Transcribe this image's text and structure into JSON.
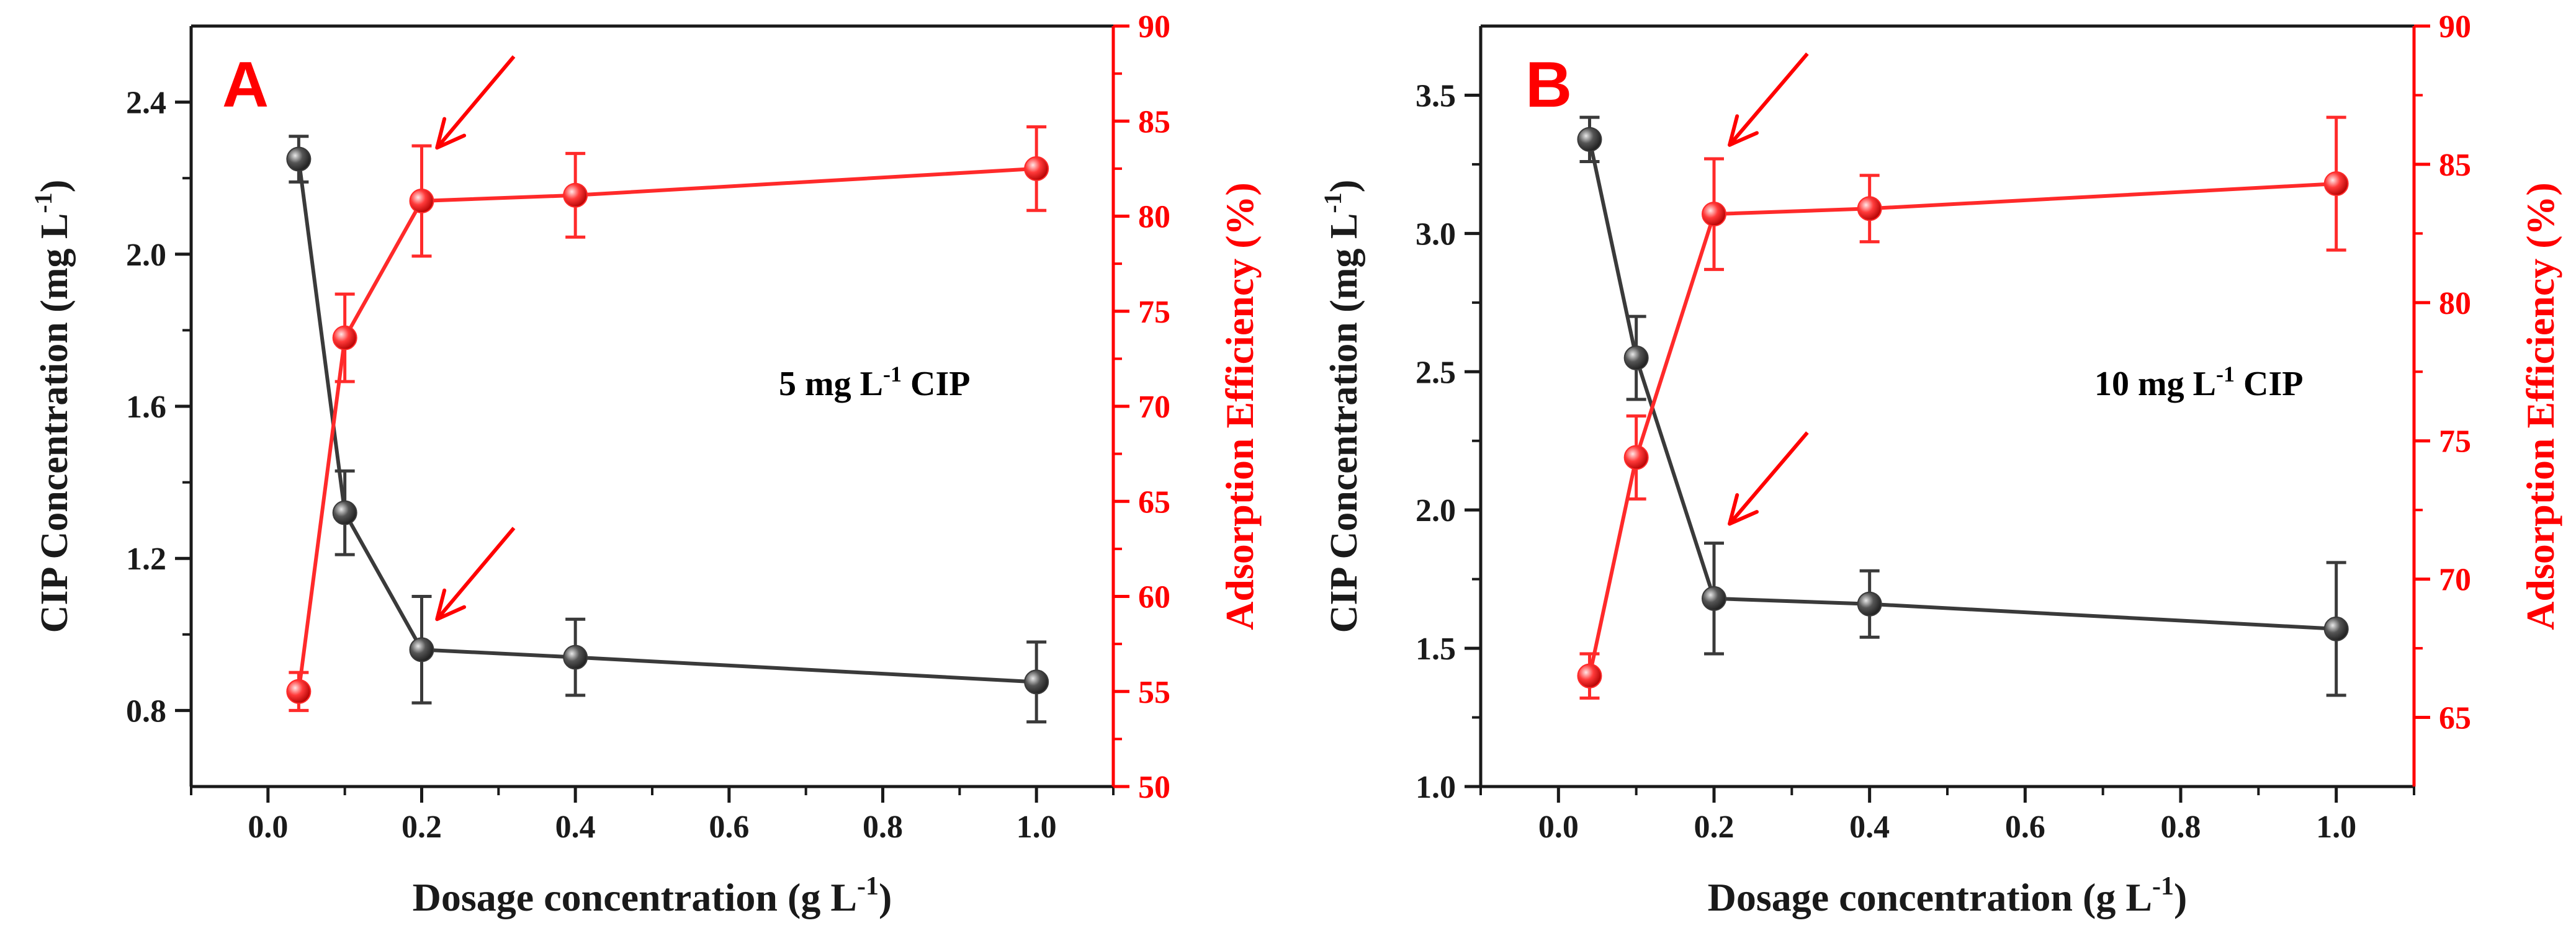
{
  "colors": {
    "left_axis": "#1a1a1a",
    "right_axis": "#ff0000",
    "series_black": "#3a3a3a",
    "series_red": "#ff2a2a",
    "arrow": "#ff0000"
  },
  "chart_data": [
    {
      "type": "line",
      "panel_label": "A",
      "annotation": {
        "main": "5 mg L",
        "sup": "-1",
        "tail": " CIP"
      },
      "xlabel": {
        "main": "Dosage concentration (g L",
        "sup": "-1",
        "tail": ")"
      },
      "ylabel_left": {
        "main": "CIP Concentration (mg L",
        "sup": "-1",
        "tail": ")"
      },
      "ylabel_right": "Adsorption Efficiency (%)",
      "xlim": [
        -0.1,
        1.1
      ],
      "ylim_left": [
        0.6,
        2.6
      ],
      "ylim_right": [
        50,
        90
      ],
      "x_ticks": [
        0.0,
        0.2,
        0.4,
        0.6,
        0.8,
        1.0
      ],
      "x_tick_labels": [
        "0.0",
        "0.2",
        "0.4",
        "0.6",
        "0.8",
        "1.0"
      ],
      "y_left_ticks": [
        0.8,
        1.2,
        1.6,
        2.0,
        2.4
      ],
      "y_left_tick_labels": [
        "0.8",
        "1.2",
        "1.6",
        "2.0",
        "2.4"
      ],
      "y_right_ticks": [
        50,
        55,
        60,
        65,
        70,
        75,
        80,
        85,
        90
      ],
      "y_right_tick_labels": [
        "50",
        "55",
        "60",
        "65",
        "70",
        "75",
        "80",
        "85",
        "90"
      ],
      "series": [
        {
          "name": "CIP Concentration",
          "axis": "left",
          "color": "black",
          "x": [
            0.04,
            0.1,
            0.2,
            0.4,
            1.0
          ],
          "y": [
            2.25,
            1.32,
            0.96,
            0.94,
            0.875
          ],
          "err": [
            0.06,
            0.11,
            0.14,
            0.1,
            0.105
          ]
        },
        {
          "name": "Adsorption Efficiency",
          "axis": "right",
          "color": "red",
          "x": [
            0.04,
            0.1,
            0.2,
            0.4,
            1.0
          ],
          "y": [
            55.0,
            73.6,
            80.8,
            81.1,
            82.5
          ],
          "err": [
            1.0,
            2.3,
            2.9,
            2.2,
            2.2
          ]
        }
      ],
      "arrows": [
        {
          "x_from": 0.32,
          "y_from": 2.52,
          "x_to": 0.22,
          "y_to": 2.28,
          "axis": "left"
        },
        {
          "x_from": 0.32,
          "y_from": 1.28,
          "x_to": 0.22,
          "y_to": 1.04,
          "axis": "left"
        }
      ]
    },
    {
      "type": "line",
      "panel_label": "B",
      "annotation": {
        "main": "10 mg L",
        "sup": "-1",
        "tail": " CIP"
      },
      "xlabel": {
        "main": "Dosage concentration (g L",
        "sup": "-1",
        "tail": ")"
      },
      "ylabel_left": {
        "main": "CIP Concentration (mg L",
        "sup": "-1",
        "tail": ")"
      },
      "ylabel_right": "Adsorption Efficiency (%)",
      "xlim": [
        -0.1,
        1.1
      ],
      "ylim_left": [
        1.0,
        3.75
      ],
      "ylim_right": [
        62.5,
        90
      ],
      "x_ticks": [
        0.0,
        0.2,
        0.4,
        0.6,
        0.8,
        1.0
      ],
      "x_tick_labels": [
        "0.0",
        "0.2",
        "0.4",
        "0.6",
        "0.8",
        "1.0"
      ],
      "y_left_ticks": [
        1.0,
        1.5,
        2.0,
        2.5,
        3.0,
        3.5
      ],
      "y_left_tick_labels": [
        "1.0",
        "1.5",
        "2.0",
        "2.5",
        "3.0",
        "3.5"
      ],
      "y_right_ticks": [
        65,
        70,
        75,
        80,
        85,
        90
      ],
      "y_right_tick_labels": [
        "65",
        "70",
        "75",
        "80",
        "85",
        "90"
      ],
      "series": [
        {
          "name": "CIP Concentration",
          "axis": "left",
          "color": "black",
          "x": [
            0.04,
            0.1,
            0.2,
            0.4,
            1.0
          ],
          "y": [
            3.34,
            2.55,
            1.68,
            1.66,
            1.57
          ],
          "err": [
            0.08,
            0.15,
            0.2,
            0.12,
            0.24
          ]
        },
        {
          "name": "Adsorption Efficiency",
          "axis": "right",
          "color": "red",
          "x": [
            0.04,
            0.1,
            0.2,
            0.4,
            1.0
          ],
          "y": [
            66.5,
            74.4,
            83.2,
            83.4,
            84.3
          ],
          "err": [
            0.8,
            1.5,
            2.0,
            1.2,
            2.4
          ]
        }
      ],
      "arrows": [
        {
          "x_from": 0.32,
          "y_from": 3.65,
          "x_to": 0.22,
          "y_to": 3.32,
          "axis": "left"
        },
        {
          "x_from": 0.32,
          "y_from": 2.28,
          "x_to": 0.22,
          "y_to": 1.95,
          "axis": "left"
        }
      ]
    }
  ]
}
